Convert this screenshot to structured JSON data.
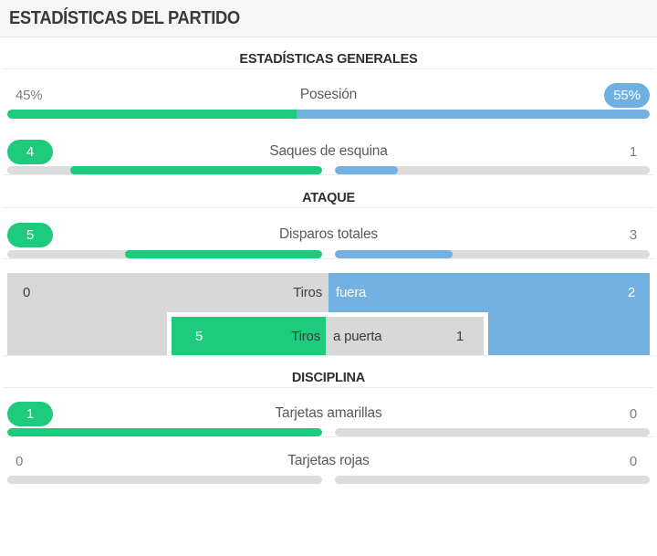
{
  "header": {
    "title": "ESTADÍSTICAS DEL PARTIDO"
  },
  "colors": {
    "home_green": "#1ecb7c",
    "away_blue": "#72b1e1",
    "track_gray": "#dcdcdc",
    "block_gray": "#d8d8d8",
    "header_bg": "#f6f6f6"
  },
  "sections": {
    "general": {
      "title": "ESTADÍSTICAS GENERALES"
    },
    "attack": {
      "title": "ATAQUE"
    },
    "discipline": {
      "title": "DISCIPLINA"
    }
  },
  "stats": {
    "possession": {
      "label": "Posesión",
      "home": "45%",
      "away": "55%"
    },
    "corners": {
      "label": "Saques de esquina",
      "home": "4",
      "away": "1"
    },
    "shots_total": {
      "label": "Disparos totales",
      "home": "5",
      "away": "3"
    },
    "shots_off_target": {
      "label_home_side": "Tiros",
      "label_away_side": "fuera",
      "home": "0",
      "away": "2"
    },
    "shots_on_target": {
      "label_home_side": "Tiros",
      "label_away_side": "a puerta",
      "home": "5",
      "away": "1"
    },
    "yellow_cards": {
      "label": "Tarjetas amarillas",
      "home": "1",
      "away": "0"
    },
    "red_cards": {
      "label": "Tarjetas rojas",
      "home": "0",
      "away": "0"
    }
  }
}
